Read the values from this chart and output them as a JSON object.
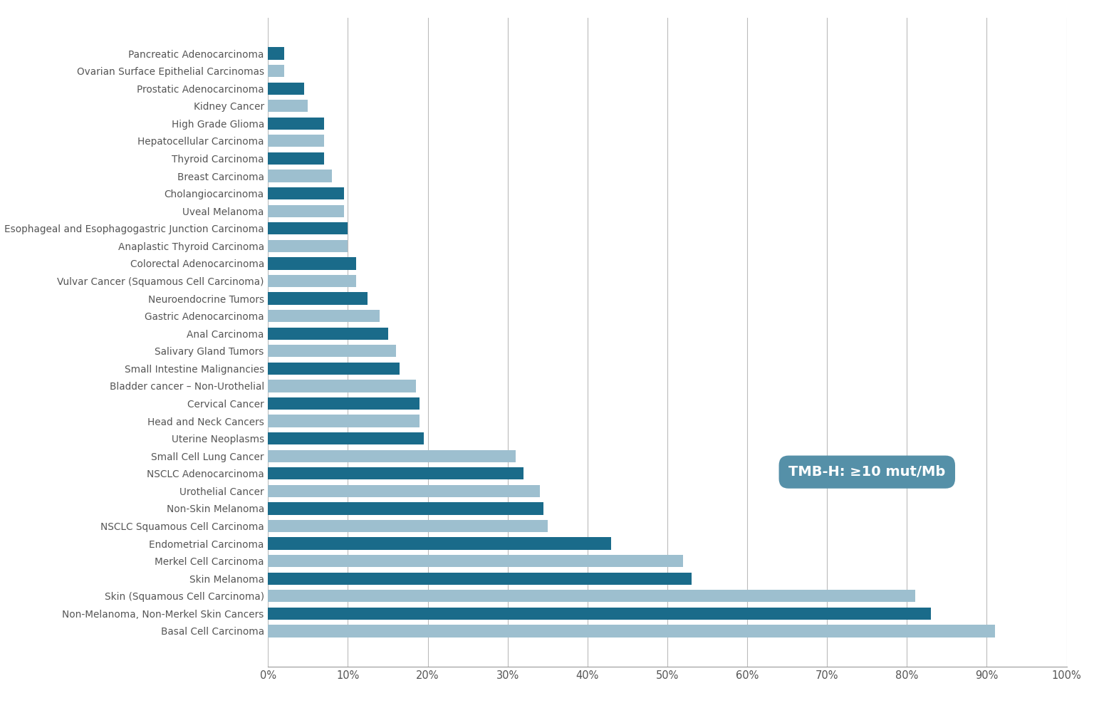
{
  "categories": [
    "Pancreatic Adenocarcinoma",
    "Ovarian Surface Epithelial Carcinomas",
    "Prostatic Adenocarcinoma",
    "Kidney Cancer",
    "High Grade Glioma",
    "Hepatocellular Carcinoma",
    "Thyroid Carcinoma",
    "Breast Carcinoma",
    "Cholangiocarcinoma",
    "Uveal Melanoma",
    "Esophageal and Esophagogastric Junction Carcinoma",
    "Anaplastic Thyroid Carcinoma",
    "Colorectal Adenocarcinoma",
    "Vulvar Cancer (Squamous Cell Carcinoma)",
    "Neuroendocrine Tumors",
    "Gastric Adenocarcinoma",
    "Anal Carcinoma",
    "Salivary Gland Tumors",
    "Small Intestine Malignancies",
    "Bladder cancer – Non-Urothelial",
    "Cervical Cancer",
    "Head and Neck Cancers",
    "Uterine Neoplasms",
    "Small Cell Lung Cancer",
    "NSCLC Adenocarcinoma",
    "Urothelial Cancer",
    "Non-Skin Melanoma",
    "NSCLC Squamous Cell Carcinoma",
    "Endometrial Carcinoma",
    "Merkel Cell Carcinoma",
    "Skin Melanoma",
    "Skin (Squamous Cell Carcinoma)",
    "Non-Melanoma, Non-Merkel Skin Cancers",
    "Basal Cell Carcinoma"
  ],
  "values": [
    2.0,
    2.0,
    4.5,
    5.0,
    7.0,
    7.0,
    7.0,
    8.0,
    9.5,
    9.5,
    10.0,
    10.0,
    11.0,
    11.0,
    12.5,
    14.0,
    15.0,
    16.0,
    16.5,
    18.5,
    19.0,
    19.0,
    19.5,
    31.0,
    32.0,
    34.0,
    34.5,
    35.0,
    43.0,
    52.0,
    53.0,
    81.0,
    83.0,
    91.0
  ],
  "dark_color": "#1a6b8a",
  "light_color": "#9dbfcf",
  "dark_indices": [
    0,
    2,
    4,
    6,
    8,
    10,
    12,
    14,
    16,
    18,
    20,
    22,
    24,
    26,
    28,
    30,
    32
  ],
  "light_indices": [
    1,
    3,
    5,
    7,
    9,
    11,
    13,
    15,
    17,
    19,
    21,
    23,
    25,
    27,
    29,
    31,
    33
  ],
  "xlim": [
    0,
    100
  ],
  "xtick_labels": [
    "0%",
    "10%",
    "20%",
    "30%",
    "40%",
    "50%",
    "60%",
    "70%",
    "80%",
    "90%",
    "100%"
  ],
  "xtick_values": [
    0,
    10,
    20,
    30,
    40,
    50,
    60,
    70,
    80,
    90,
    100
  ],
  "legend_text": "TMB-H: ≥10 mut/Mb",
  "legend_box_color": "#5590a8",
  "background_color": "#ffffff",
  "label_fontsize": 9.8,
  "tick_fontsize": 10.5,
  "bar_height": 0.7
}
